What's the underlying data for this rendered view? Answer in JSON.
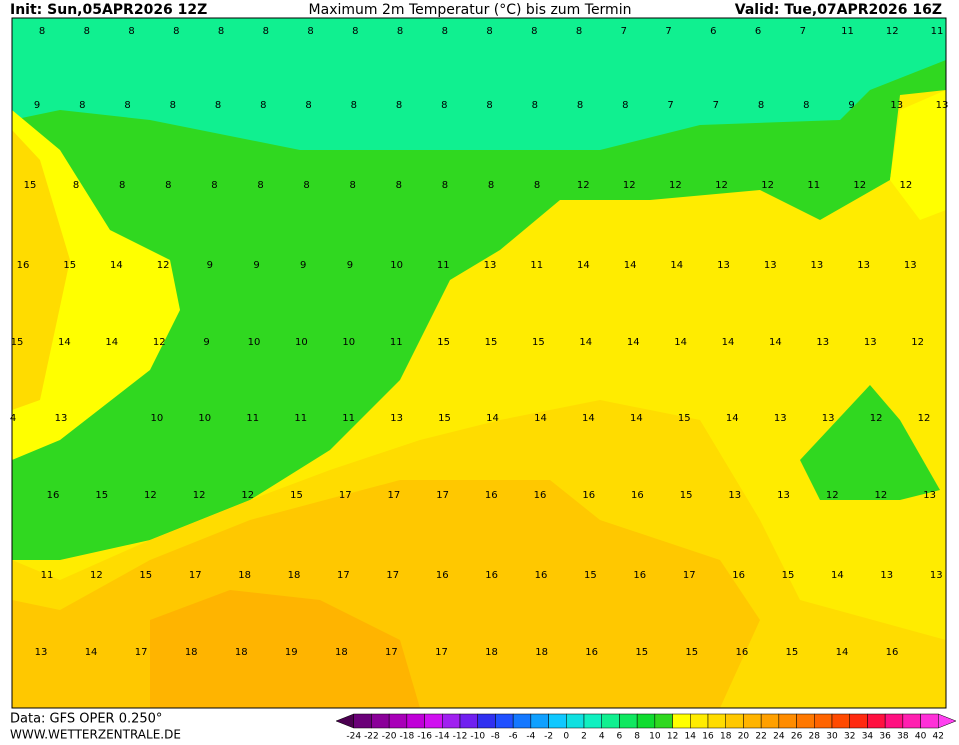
{
  "header": {
    "init": "Init: Sun,05APR2026 12Z",
    "title": "Maximum 2m Temperatur (°C) bis zum Termin",
    "valid": "Valid: Tue,07APR2026 16Z"
  },
  "map": {
    "rows": [
      [
        8,
        8,
        8,
        8,
        8,
        8,
        8,
        8,
        8,
        8,
        8,
        8,
        8,
        7,
        7,
        6,
        6,
        7,
        11,
        12,
        11
      ],
      [
        9,
        8,
        8,
        8,
        8,
        8,
        8,
        8,
        8,
        8,
        8,
        8,
        8,
        8,
        7,
        7,
        8,
        8,
        9,
        13,
        13
      ],
      [
        15,
        8,
        8,
        8,
        8,
        8,
        8,
        8,
        8,
        8,
        8,
        8,
        12,
        12,
        12,
        12,
        12,
        11,
        12,
        12
      ],
      [
        16,
        15,
        14,
        12,
        9,
        9,
        9,
        9,
        10,
        11,
        13,
        11,
        14,
        14,
        14,
        13,
        13,
        13,
        13,
        13
      ],
      [
        15,
        14,
        14,
        12,
        9,
        10,
        10,
        10,
        11,
        15,
        15,
        15,
        14,
        14,
        14,
        14,
        14,
        13,
        13,
        12
      ],
      [
        4,
        13,
        null,
        10,
        10,
        11,
        11,
        11,
        13,
        15,
        14,
        14,
        14,
        14,
        15,
        14,
        13,
        13,
        12,
        12
      ],
      [
        16,
        15,
        12,
        12,
        12,
        15,
        17,
        17,
        17,
        16,
        16,
        16,
        16,
        15,
        13,
        13,
        12,
        12,
        13
      ],
      [
        11,
        12,
        15,
        17,
        18,
        18,
        17,
        17,
        16,
        16,
        16,
        15,
        16,
        17,
        16,
        15,
        14,
        13,
        13
      ],
      [
        13,
        14,
        17,
        18,
        18,
        19,
        18,
        17,
        17,
        18,
        18,
        16,
        15,
        15,
        16,
        15,
        14,
        16
      ]
    ]
  },
  "footer": {
    "data": "Data: GFS OPER 0.250°",
    "site": "WWW.WETTERZENTRALE.DE"
  },
  "colorbar": {
    "labels": [
      -24,
      -22,
      -20,
      -18,
      -16,
      -14,
      -12,
      -10,
      -8,
      -6,
      -4,
      -2,
      0,
      2,
      4,
      6,
      8,
      10,
      12,
      14,
      16,
      18,
      20,
      22,
      24,
      26,
      28,
      30,
      32,
      34,
      36,
      38,
      40,
      42
    ],
    "colors": [
      "#4b0050",
      "#6a0078",
      "#8a0099",
      "#a800b8",
      "#c000d8",
      "#d010f0",
      "#a020f0",
      "#7020f0",
      "#3030f0",
      "#2050ff",
      "#1478ff",
      "#10a0ff",
      "#10c8ff",
      "#10e0e0",
      "#10f0c0",
      "#10f090",
      "#10e860",
      "#10dc30",
      "#30d820",
      "#ffff00",
      "#ffec00",
      "#ffdc00",
      "#ffc800",
      "#ffb400",
      "#ffa000",
      "#ff8c00",
      "#ff7800",
      "#ff6400",
      "#ff4a00",
      "#ff2a10",
      "#ff1040",
      "#ff1080",
      "#ff20b0",
      "#ff30d8",
      "#ff40f0"
    ]
  }
}
